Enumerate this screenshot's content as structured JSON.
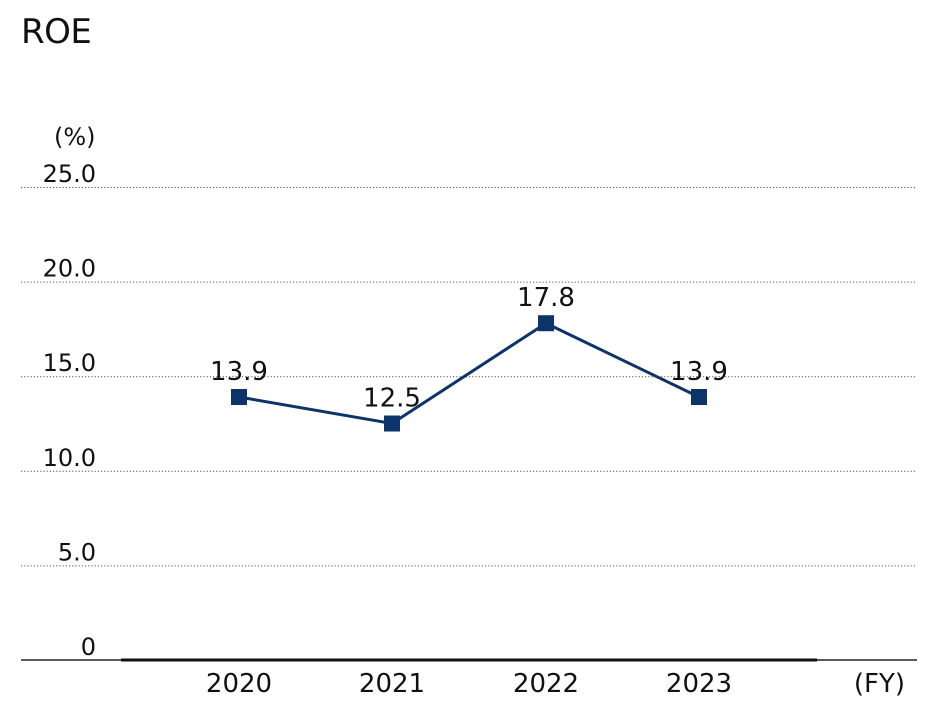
{
  "title": "ROE",
  "chart_data": {
    "type": "line",
    "title": "ROE",
    "ylabel": "(%)",
    "xlabel": "(FY)",
    "categories": [
      "2020",
      "2021",
      "2022",
      "2023"
    ],
    "series": [
      {
        "values": [
          13.9,
          12.5,
          17.8,
          13.9
        ]
      }
    ],
    "data_labels": [
      "13.9",
      "12.5",
      "17.8",
      "13.9"
    ],
    "ylim": [
      0,
      25
    ],
    "yticks": [
      "0",
      "5.0",
      "10.0",
      "15.0",
      "20.0",
      "25.0"
    ],
    "grid": true,
    "grid_style": "dotted",
    "line_color": "#0c3468",
    "marker": "square"
  }
}
